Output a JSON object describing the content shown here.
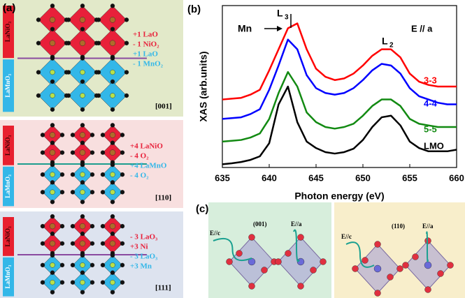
{
  "panel_a": {
    "label": "(a)",
    "parts": [
      {
        "top": "LaNiO₃",
        "bottom": "LaMnO₃",
        "lines": [
          "+1  LaO",
          "- 1  NiO₂",
          "+1  LaO",
          "- 1  MnO₂"
        ],
        "direction": "[001]"
      },
      {
        "top": "LaNiO₃",
        "bottom": "LaMnO₃",
        "lines": [
          "+4  LaNiO",
          "- 4       O₂",
          "+4  LaMnO",
          "- 4       O₂"
        ],
        "direction": "[110]"
      },
      {
        "top": "LaNiO₃",
        "bottom": "LaMnO₃",
        "lines": [
          "- 3  LaO₃",
          "+3    Ni",
          "- 3  LaO₃",
          "+3    Mn"
        ],
        "direction": "[111]"
      }
    ]
  },
  "chart_data": {
    "type": "line",
    "label": "(b)",
    "ylabel": "XAS (arb.units)",
    "xlabel": "Photon energy (eV)",
    "annotations": {
      "mn": "Mn",
      "l3": "L",
      "l3_sub": "3",
      "l2": "L",
      "l2_sub": "2",
      "polarization": "E // a"
    },
    "x": [
      635,
      636,
      637,
      638,
      639,
      640,
      641,
      642,
      643,
      644,
      645,
      646,
      647,
      648,
      649,
      650,
      651,
      652,
      653,
      654,
      655,
      656,
      657,
      658,
      659,
      660
    ],
    "xlim": [
      635,
      660
    ],
    "xticks": [
      635,
      640,
      645,
      650,
      655,
      660
    ],
    "ylim": [
      0,
      10
    ],
    "series": [
      {
        "name": "3-3",
        "color": "#ff0000",
        "values": [
          4.2,
          4.25,
          4.3,
          4.5,
          4.8,
          6.0,
          7.3,
          8.6,
          8.9,
          7.3,
          6.1,
          5.6,
          5.4,
          5.5,
          5.8,
          6.3,
          6.9,
          7.3,
          7.3,
          6.8,
          5.8,
          5.3,
          5.1,
          5.0,
          5.0,
          5.0
        ]
      },
      {
        "name": "4-4",
        "color": "#0000ff",
        "values": [
          3.0,
          3.05,
          3.1,
          3.3,
          3.6,
          4.8,
          6.3,
          7.9,
          7.3,
          5.7,
          4.9,
          4.6,
          4.5,
          4.6,
          4.9,
          5.4,
          6.0,
          6.4,
          6.3,
          5.8,
          4.9,
          4.4,
          4.2,
          4.0,
          3.9,
          3.9
        ]
      },
      {
        "name": "5-5",
        "color": "#128a12",
        "values": [
          1.6,
          1.65,
          1.7,
          1.85,
          2.1,
          3.0,
          4.6,
          5.9,
          5.0,
          3.4,
          2.8,
          2.5,
          2.4,
          2.5,
          2.7,
          3.2,
          3.8,
          4.2,
          4.2,
          3.8,
          3.0,
          2.7,
          2.6,
          2.5,
          2.5,
          2.5
        ]
      },
      {
        "name": "LMO",
        "color": "#000000",
        "values": [
          0.2,
          0.26,
          0.34,
          0.47,
          0.69,
          1.5,
          3.9,
          5.0,
          2.8,
          1.6,
          1.2,
          0.95,
          0.86,
          0.95,
          1.16,
          1.7,
          2.5,
          3.1,
          3.2,
          2.6,
          1.6,
          1.2,
          1.0,
          1.0,
          1.0,
          1.1
        ]
      }
    ]
  },
  "panel_c": {
    "label": "(c)",
    "left": {
      "direction": "(001)",
      "e_c": "E//c",
      "e_a": "E//a"
    },
    "right": {
      "direction": "(110)",
      "e_c": "E//c",
      "e_a": "E//a"
    }
  }
}
